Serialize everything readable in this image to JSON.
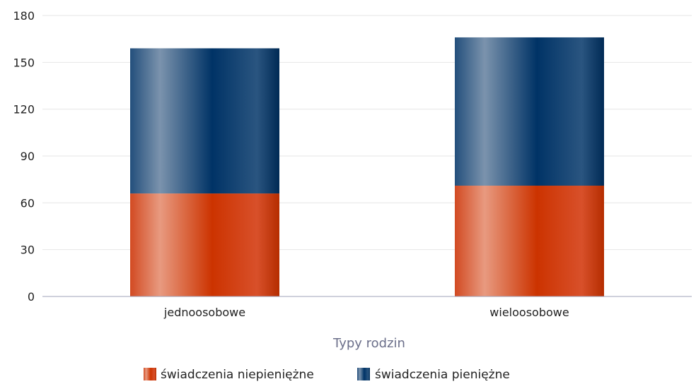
{
  "chart_data": {
    "type": "bar",
    "stacked": true,
    "categories": [
      "jednoosobowe",
      "wieloosobowe"
    ],
    "series": [
      {
        "name": "świadczenia niepieniężne",
        "values": [
          66,
          71
        ],
        "color": "#cc3300"
      },
      {
        "name": "świadczenia pieniężne",
        "values": [
          93,
          95
        ],
        "color": "#003366"
      }
    ],
    "xlabel": "Typy rodzin",
    "ylabel": "",
    "ylim": [
      0,
      180
    ],
    "yticks": [
      0,
      30,
      60,
      90,
      120,
      150,
      180
    ],
    "grid": true,
    "legend_position": "bottom"
  }
}
